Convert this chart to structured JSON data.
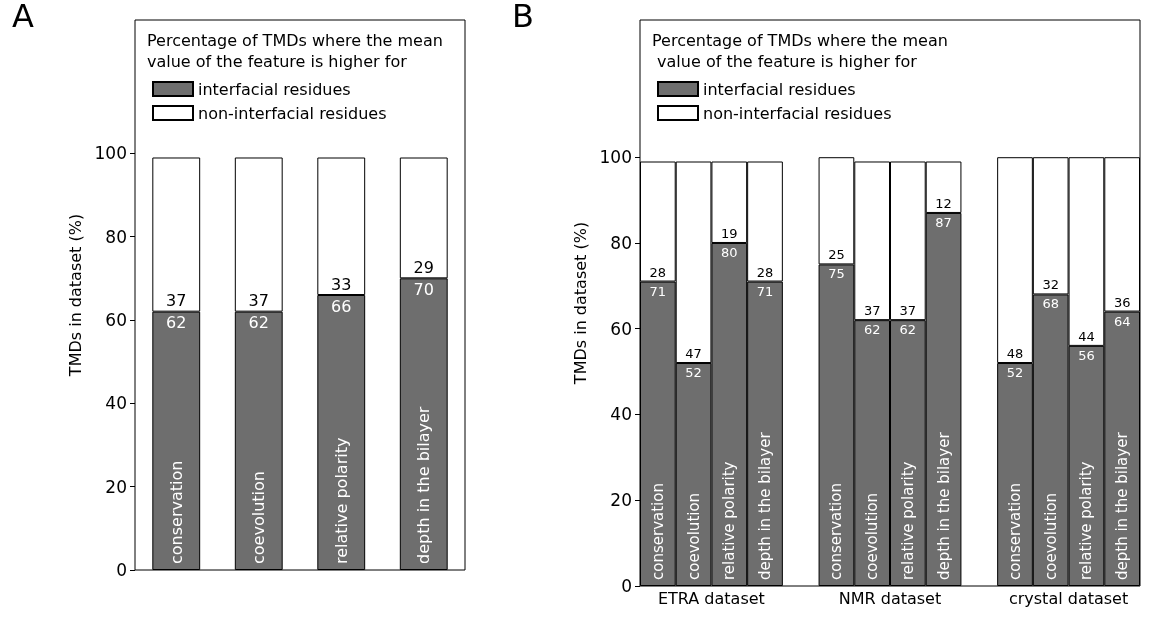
{
  "chart_data": [
    {
      "type": "bar",
      "title": "A",
      "ylabel": "TMDs in dataset (%)",
      "legend_title": "Percentage of TMDs where the mean value of the feature is higher for",
      "categories": [
        "conservation",
        "coevolution",
        "relative polarity",
        "depth in the bilayer"
      ],
      "stacked": true,
      "data_labels": true,
      "legend": "top left",
      "grid": false,
      "ylim": [
        0,
        132
      ],
      "yticks": [
        0,
        20,
        40,
        60,
        80,
        100
      ],
      "series": [
        {
          "name": "interfacial residues",
          "color": "#6e6e6e",
          "values": [
            62,
            62,
            66,
            70
          ]
        },
        {
          "name": "non-interfacial residues",
          "color": "#ffffff",
          "values": [
            37,
            37,
            33,
            29
          ]
        }
      ]
    },
    {
      "type": "bar",
      "title": "B",
      "ylabel": "TMDs in dataset (%)",
      "legend_title": "Percentage of TMDs where the mean value of the feature is higher for",
      "categories": [
        "conservation",
        "coevolution",
        "relative polarity",
        "depth in the bilayer",
        null,
        "conservation",
        "coevolution",
        "relative polarity",
        "depth in the bilayer",
        null,
        "conservation",
        "coevolution",
        "relative polarity",
        "depth in the bilayer"
      ],
      "stacked": true,
      "data_labels": true,
      "legend": "top left",
      "grid": false,
      "ylim": [
        0,
        132
      ],
      "yticks": [
        0,
        20,
        40,
        60,
        80,
        100
      ],
      "annotations": [
        "ETRA dataset",
        "NMR dataset",
        "crystal dataset"
      ],
      "series": [
        {
          "name": "interfacial residues",
          "color": "#6e6e6e",
          "values": [
            71,
            52,
            80,
            71,
            null,
            75,
            62,
            62,
            87,
            null,
            52,
            68,
            56,
            64
          ]
        },
        {
          "name": "non-interfacial residues",
          "color": "#ffffff",
          "values": [
            28,
            47,
            19,
            28,
            null,
            25,
            37,
            37,
            12,
            null,
            48,
            32,
            44,
            36
          ]
        }
      ]
    }
  ]
}
